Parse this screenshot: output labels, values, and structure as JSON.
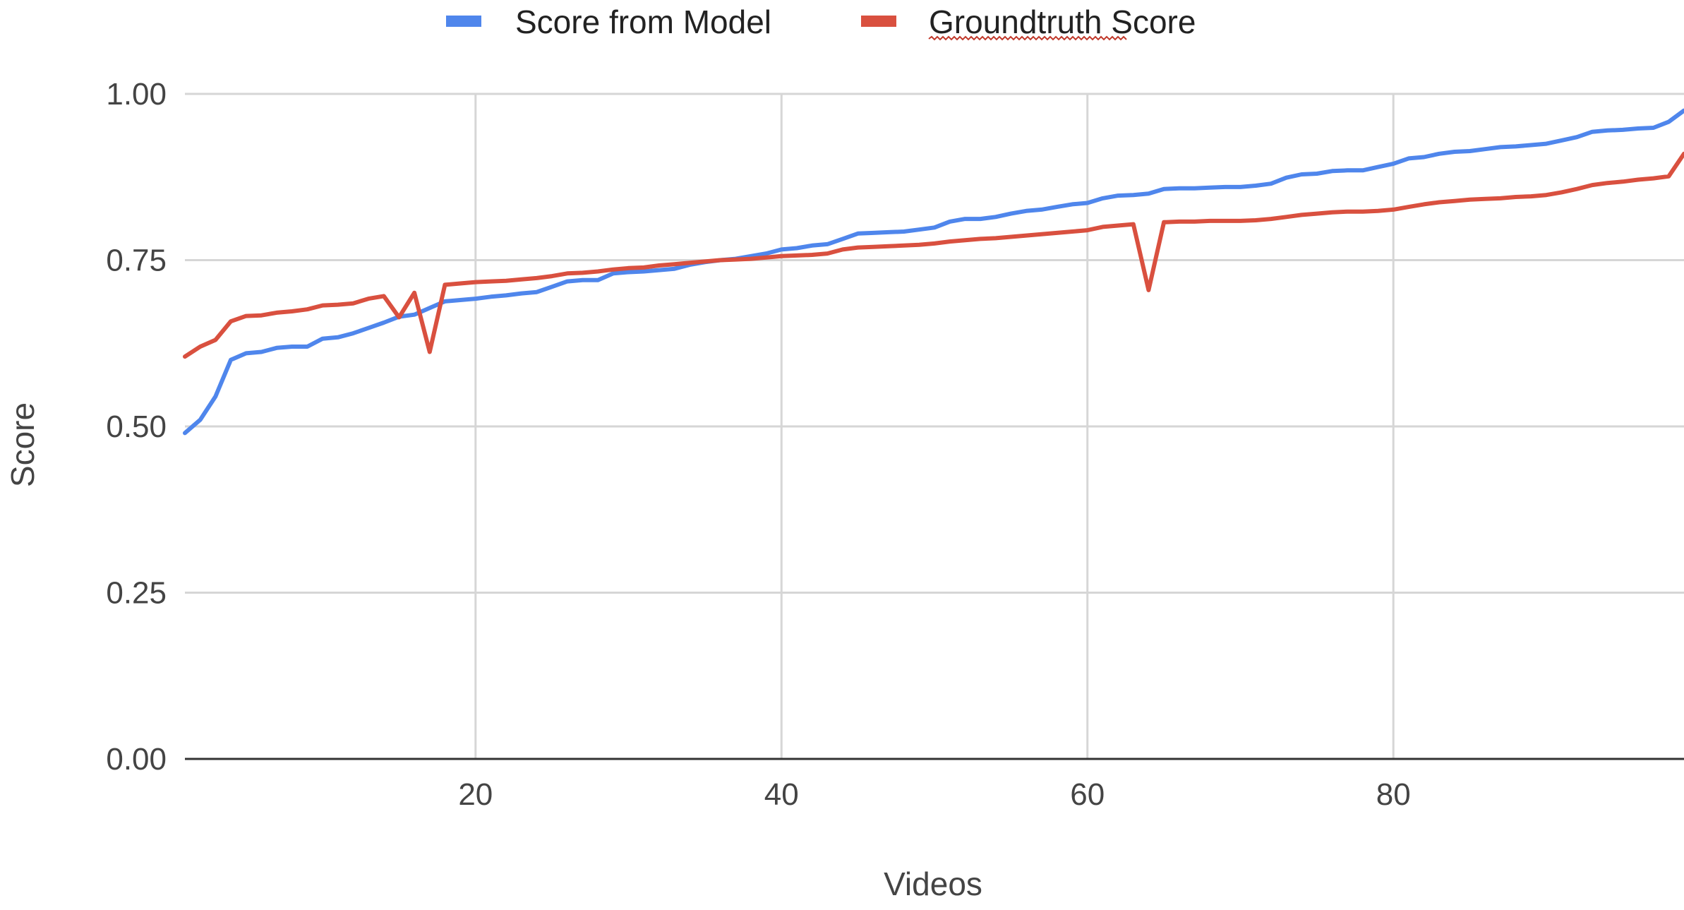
{
  "chart_data": {
    "type": "line",
    "title": "",
    "xlabel": "Videos",
    "ylabel": "Score",
    "xlim": [
      1,
      99
    ],
    "ylim": [
      0,
      1
    ],
    "x_ticks": [
      20,
      40,
      60,
      80
    ],
    "x_tick_labels": [
      "20",
      "40",
      "60",
      "80"
    ],
    "y_ticks": [
      0,
      0.25,
      0.5,
      0.75,
      1.0
    ],
    "y_tick_labels": [
      "0.00",
      "0.25",
      "0.50",
      "0.75",
      "1.00"
    ],
    "grid": true,
    "legend": "top",
    "x": [
      1,
      2,
      3,
      4,
      5,
      6,
      7,
      8,
      9,
      10,
      11,
      12,
      13,
      14,
      15,
      16,
      17,
      18,
      19,
      20,
      21,
      22,
      23,
      24,
      25,
      26,
      27,
      28,
      29,
      30,
      31,
      32,
      33,
      34,
      35,
      36,
      37,
      38,
      39,
      40,
      41,
      42,
      43,
      44,
      45,
      46,
      47,
      48,
      49,
      50,
      51,
      52,
      53,
      54,
      55,
      56,
      57,
      58,
      59,
      60,
      61,
      62,
      63,
      64,
      65,
      66,
      67,
      68,
      69,
      70,
      71,
      72,
      73,
      74,
      75,
      76,
      77,
      78,
      79,
      80,
      81,
      82,
      83,
      84,
      85,
      86,
      87,
      88,
      89,
      90,
      91,
      92,
      93,
      94,
      95,
      96,
      97,
      98,
      99
    ],
    "series": [
      {
        "name": "Score from Model",
        "color": "#4f86ec",
        "values": [
          0.49,
          0.51,
          0.545,
          0.6,
          0.61,
          0.612,
          0.618,
          0.62,
          0.62,
          0.632,
          0.634,
          0.64,
          0.648,
          0.656,
          0.665,
          0.668,
          0.678,
          0.688,
          0.69,
          0.692,
          0.695,
          0.697,
          0.7,
          0.702,
          0.71,
          0.718,
          0.72,
          0.72,
          0.73,
          0.732,
          0.733,
          0.735,
          0.737,
          0.743,
          0.747,
          0.75,
          0.752,
          0.756,
          0.76,
          0.766,
          0.768,
          0.772,
          0.774,
          0.782,
          0.79,
          0.791,
          0.792,
          0.793,
          0.796,
          0.799,
          0.808,
          0.812,
          0.812,
          0.815,
          0.82,
          0.824,
          0.826,
          0.83,
          0.834,
          0.836,
          0.843,
          0.847,
          0.848,
          0.85,
          0.857,
          0.858,
          0.858,
          0.859,
          0.86,
          0.86,
          0.862,
          0.865,
          0.874,
          0.879,
          0.88,
          0.884,
          0.885,
          0.885,
          0.89,
          0.895,
          0.903,
          0.905,
          0.91,
          0.913,
          0.914,
          0.917,
          0.92,
          0.921,
          0.923,
          0.925,
          0.93,
          0.935,
          0.943,
          0.945,
          0.946,
          0.948,
          0.949,
          0.958,
          0.975
        ]
      },
      {
        "name": "Groundtruth Score",
        "color": "#d9503f",
        "values": [
          0.605,
          0.62,
          0.63,
          0.658,
          0.666,
          0.667,
          0.671,
          0.673,
          0.676,
          0.682,
          0.683,
          0.685,
          0.692,
          0.696,
          0.664,
          0.701,
          0.612,
          0.713,
          0.715,
          0.717,
          0.718,
          0.719,
          0.721,
          0.723,
          0.726,
          0.73,
          0.731,
          0.733,
          0.736,
          0.738,
          0.739,
          0.742,
          0.744,
          0.746,
          0.748,
          0.75,
          0.751,
          0.752,
          0.754,
          0.756,
          0.757,
          0.758,
          0.76,
          0.766,
          0.769,
          0.77,
          0.771,
          0.772,
          0.773,
          0.775,
          0.778,
          0.78,
          0.782,
          0.783,
          0.785,
          0.787,
          0.789,
          0.791,
          0.793,
          0.795,
          0.8,
          0.802,
          0.804,
          0.705,
          0.807,
          0.808,
          0.808,
          0.809,
          0.809,
          0.809,
          0.81,
          0.812,
          0.815,
          0.818,
          0.82,
          0.822,
          0.823,
          0.823,
          0.824,
          0.826,
          0.83,
          0.834,
          0.837,
          0.839,
          0.841,
          0.842,
          0.843,
          0.845,
          0.846,
          0.848,
          0.852,
          0.857,
          0.863,
          0.866,
          0.868,
          0.871,
          0.873,
          0.876,
          0.91
        ]
      }
    ]
  }
}
